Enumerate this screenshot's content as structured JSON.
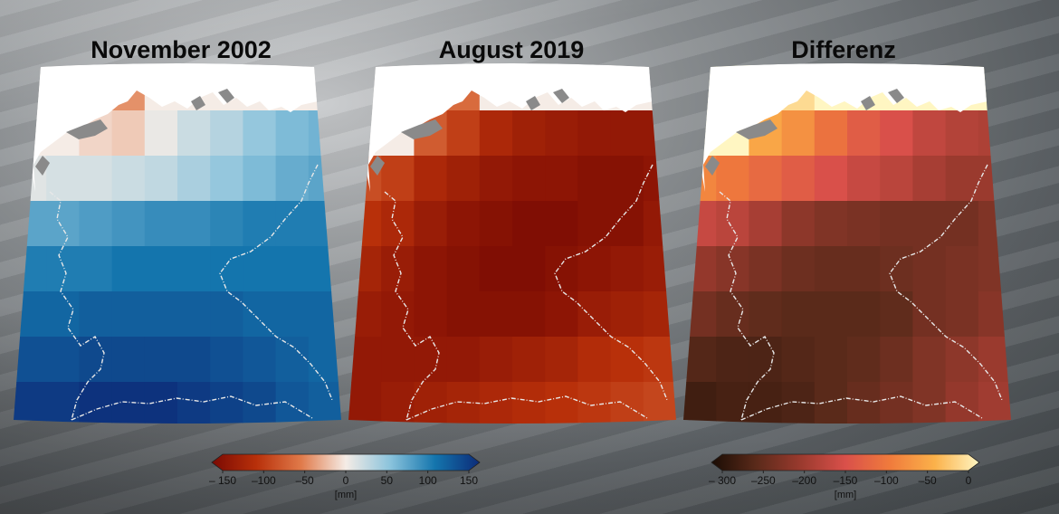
{
  "panels": [
    {
      "title": "November 2002",
      "colormap": "diverging"
    },
    {
      "title": "August 2019",
      "colormap": "diverging"
    },
    {
      "title": "Differenz",
      "colormap": "sequential"
    }
  ],
  "colorbars": [
    {
      "name": "anomaly",
      "ticks": [
        "– 150",
        "–100",
        "–50",
        "0",
        "50",
        "100",
        "150"
      ],
      "tick_values": [
        -150,
        -100,
        -50,
        0,
        50,
        100,
        150
      ],
      "unit": "[mm]",
      "colors": [
        "#7a0a03",
        "#b8300a",
        "#e07a4a",
        "#f5ece6",
        "#8ac3dc",
        "#1475ad",
        "#0c2b78"
      ]
    },
    {
      "name": "difference",
      "ticks": [
        "– 300",
        "–250",
        "–200",
        "–150",
        "–100",
        "–50",
        "0"
      ],
      "tick_values": [
        -300,
        -250,
        -200,
        -150,
        -100,
        -50,
        0
      ],
      "unit": "[mm]",
      "colors": [
        "#1a0c04",
        "#5a2a1a",
        "#9a3a2e",
        "#d9504a",
        "#f07b3c",
        "#fbb14a",
        "#fff6c2"
      ]
    }
  ],
  "chart_data": {
    "type": "heatmap",
    "rows": 8,
    "cols": 10,
    "november_2002_mm": [
      [
        0,
        0,
        0,
        -40,
        0,
        0,
        0,
        0,
        0,
        0
      ],
      [
        0,
        0,
        -10,
        -15,
        5,
        20,
        30,
        45,
        55,
        60
      ],
      [
        10,
        15,
        15,
        20,
        25,
        35,
        45,
        55,
        65,
        70
      ],
      [
        70,
        70,
        75,
        80,
        85,
        85,
        90,
        95,
        95,
        95
      ],
      [
        95,
        95,
        95,
        100,
        100,
        100,
        100,
        100,
        100,
        100
      ],
      [
        110,
        110,
        115,
        115,
        115,
        115,
        115,
        110,
        110,
        110
      ],
      [
        125,
        125,
        130,
        130,
        130,
        130,
        125,
        120,
        115,
        110
      ],
      [
        140,
        140,
        145,
        145,
        145,
        140,
        135,
        130,
        120,
        115
      ]
    ],
    "august_2019_mm": [
      [
        0,
        0,
        0,
        -60,
        0,
        0,
        0,
        0,
        0,
        0
      ],
      [
        0,
        0,
        -70,
        -90,
        -110,
        -120,
        -125,
        -130,
        -130,
        -130
      ],
      [
        -80,
        -90,
        -110,
        -120,
        -130,
        -135,
        -135,
        -140,
        -140,
        -135
      ],
      [
        -100,
        -110,
        -125,
        -135,
        -140,
        -145,
        -145,
        -140,
        -140,
        -130
      ],
      [
        -115,
        -125,
        -135,
        -140,
        -145,
        -145,
        -140,
        -135,
        -130,
        -125
      ],
      [
        -125,
        -130,
        -135,
        -140,
        -140,
        -140,
        -135,
        -125,
        -120,
        -115
      ],
      [
        -130,
        -130,
        -130,
        -130,
        -125,
        -120,
        -115,
        -105,
        -100,
        -95
      ],
      [
        -130,
        -125,
        -120,
        -115,
        -110,
        -105,
        -100,
        -95,
        -90,
        -85
      ]
    ],
    "differenz_mm": [
      [
        0,
        0,
        0,
        -20,
        0,
        0,
        0,
        0,
        0,
        0
      ],
      [
        0,
        0,
        -60,
        -80,
        -110,
        -135,
        -150,
        -170,
        -180,
        -185
      ],
      [
        -90,
        -105,
        -120,
        -135,
        -150,
        -165,
        -175,
        -190,
        -200,
        -200
      ],
      [
        -165,
        -175,
        -190,
        -210,
        -220,
        -225,
        -230,
        -230,
        -230,
        -220
      ],
      [
        -205,
        -215,
        -225,
        -235,
        -240,
        -240,
        -235,
        -230,
        -225,
        -220
      ],
      [
        -230,
        -240,
        -245,
        -250,
        -250,
        -250,
        -245,
        -230,
        -225,
        -215
      ],
      [
        -255,
        -260,
        -260,
        -255,
        -250,
        -245,
        -235,
        -220,
        -210,
        -200
      ],
      [
        -270,
        -265,
        -265,
        -260,
        -250,
        -240,
        -230,
        -220,
        -205,
        -195
      ]
    ]
  }
}
